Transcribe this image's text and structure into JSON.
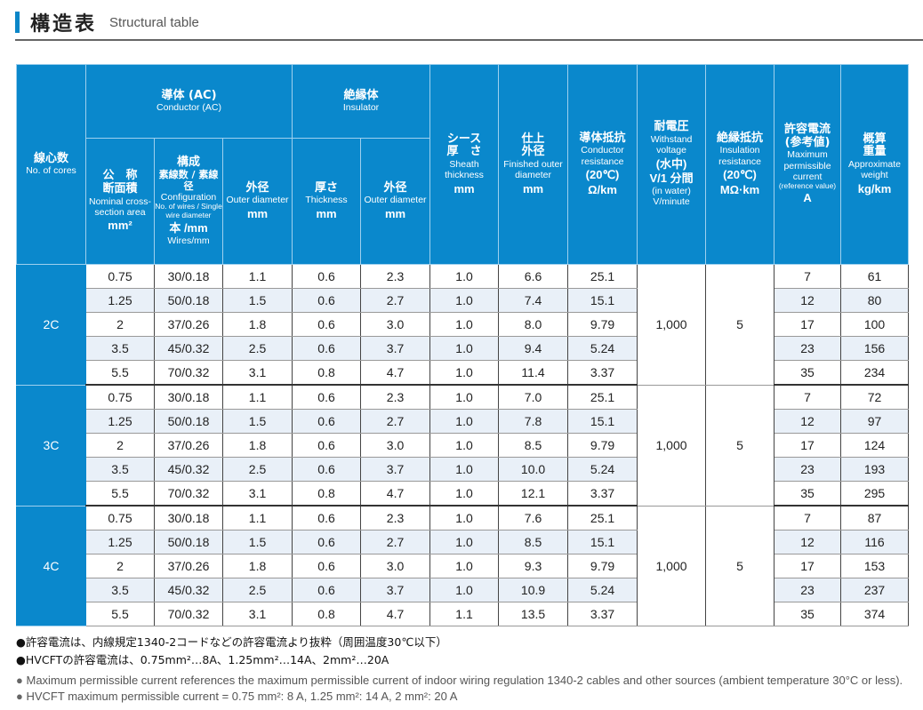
{
  "title": {
    "ja": "構造表",
    "en": "Structural table"
  },
  "headers": {
    "cores": {
      "ja": "線心数",
      "en": "No. of cores"
    },
    "conductor": {
      "ja": "導体 (AC)",
      "en": "Conductor (AC)"
    },
    "nominal": {
      "ja1": "公　称",
      "ja2": "断面積",
      "en": "Nominal cross-section area",
      "unit": "mm²"
    },
    "config": {
      "ja1": "構成",
      "ja2": "素線数 / 素線径",
      "en": "Configuration",
      "en2": "No. of wires / Single wire diameter",
      "unit": "本 /mm",
      "unit_en": "Wires/mm"
    },
    "cond_od": {
      "ja": "外径",
      "en": "Outer diameter",
      "unit": "mm"
    },
    "insulator": {
      "ja": "絶縁体",
      "en": "Insulator"
    },
    "ins_th": {
      "ja": "厚さ",
      "en": "Thickness",
      "unit": "mm"
    },
    "ins_od": {
      "ja": "外径",
      "en": "Outer diameter",
      "unit": "mm"
    },
    "sheath": {
      "ja1": "シース",
      "ja2": "厚　さ",
      "en": "Sheath thickness",
      "unit": "mm"
    },
    "finished": {
      "ja1": "仕上",
      "ja2": "外径",
      "en": "Finished outer diameter",
      "unit": "mm"
    },
    "cond_res": {
      "ja": "導体抵抗",
      "en": "Conductor resistance",
      "cond": "(20℃)",
      "unit": "Ω/km"
    },
    "withstand": {
      "ja": "耐電圧",
      "en": "Withstand voltage",
      "ja2": "(水中)",
      "unit": "V/1 分間",
      "en2": "(in water)",
      "unit_en": "V/minute"
    },
    "ins_res": {
      "ja": "絶縁抵抗",
      "en": "Insulation resistance",
      "cond": "(20℃)",
      "unit": "MΩ·km"
    },
    "current": {
      "ja1": "許容電流",
      "ja2": "(参考値)",
      "en": "Maximum permissible current",
      "en2": "(reference value)",
      "unit": "A"
    },
    "weight": {
      "ja1": "概算",
      "ja2": "重量",
      "en": "Approximate weight",
      "unit": "kg/km"
    }
  },
  "groups": [
    {
      "core": "2C",
      "withstand": "1,000",
      "ins_res": "5",
      "rows": [
        [
          "0.75",
          "30/0.18",
          "1.1",
          "0.6",
          "2.3",
          "1.0",
          "6.6",
          "25.1",
          "7",
          "61"
        ],
        [
          "1.25",
          "50/0.18",
          "1.5",
          "0.6",
          "2.7",
          "1.0",
          "7.4",
          "15.1",
          "12",
          "80"
        ],
        [
          "2",
          "37/0.26",
          "1.8",
          "0.6",
          "3.0",
          "1.0",
          "8.0",
          "9.79",
          "17",
          "100"
        ],
        [
          "3.5",
          "45/0.32",
          "2.5",
          "0.6",
          "3.7",
          "1.0",
          "9.4",
          "5.24",
          "23",
          "156"
        ],
        [
          "5.5",
          "70/0.32",
          "3.1",
          "0.8",
          "4.7",
          "1.0",
          "11.4",
          "3.37",
          "35",
          "234"
        ]
      ]
    },
    {
      "core": "3C",
      "withstand": "1,000",
      "ins_res": "5",
      "rows": [
        [
          "0.75",
          "30/0.18",
          "1.1",
          "0.6",
          "2.3",
          "1.0",
          "7.0",
          "25.1",
          "7",
          "72"
        ],
        [
          "1.25",
          "50/0.18",
          "1.5",
          "0.6",
          "2.7",
          "1.0",
          "7.8",
          "15.1",
          "12",
          "97"
        ],
        [
          "2",
          "37/0.26",
          "1.8",
          "0.6",
          "3.0",
          "1.0",
          "8.5",
          "9.79",
          "17",
          "124"
        ],
        [
          "3.5",
          "45/0.32",
          "2.5",
          "0.6",
          "3.7",
          "1.0",
          "10.0",
          "5.24",
          "23",
          "193"
        ],
        [
          "5.5",
          "70/0.32",
          "3.1",
          "0.8",
          "4.7",
          "1.0",
          "12.1",
          "3.37",
          "35",
          "295"
        ]
      ]
    },
    {
      "core": "4C",
      "withstand": "1,000",
      "ins_res": "5",
      "rows": [
        [
          "0.75",
          "30/0.18",
          "1.1",
          "0.6",
          "2.3",
          "1.0",
          "7.6",
          "25.1",
          "7",
          "87"
        ],
        [
          "1.25",
          "50/0.18",
          "1.5",
          "0.6",
          "2.7",
          "1.0",
          "8.5",
          "15.1",
          "12",
          "116"
        ],
        [
          "2",
          "37/0.26",
          "1.8",
          "0.6",
          "3.0",
          "1.0",
          "9.3",
          "9.79",
          "17",
          "153"
        ],
        [
          "3.5",
          "45/0.32",
          "2.5",
          "0.6",
          "3.7",
          "1.0",
          "10.9",
          "5.24",
          "23",
          "237"
        ],
        [
          "5.5",
          "70/0.32",
          "3.1",
          "0.8",
          "4.7",
          "1.1",
          "13.5",
          "3.37",
          "35",
          "374"
        ]
      ]
    }
  ],
  "notes": {
    "ja": [
      "●許容電流は、内線規定1340-2コードなどの許容電流より抜粋（周囲温度30℃以下）",
      "●HVCFTの許容電流は、0.75mm²…8A、1.25mm²…14A、2mm²…20A"
    ],
    "en": [
      "Maximum permissible current references the maximum permissible current of indoor wiring regulation 1340-2 cables and other sources (ambient temperature 30°C or less).",
      "HVCFT maximum permissible current = 0.75 mm²: 8 A, 1.25 mm²: 14 A, 2 mm²: 20 A"
    ],
    "bullet": "●"
  },
  "colors": {
    "header": "#0a88cc",
    "alt_row": "#e9f0f8"
  }
}
